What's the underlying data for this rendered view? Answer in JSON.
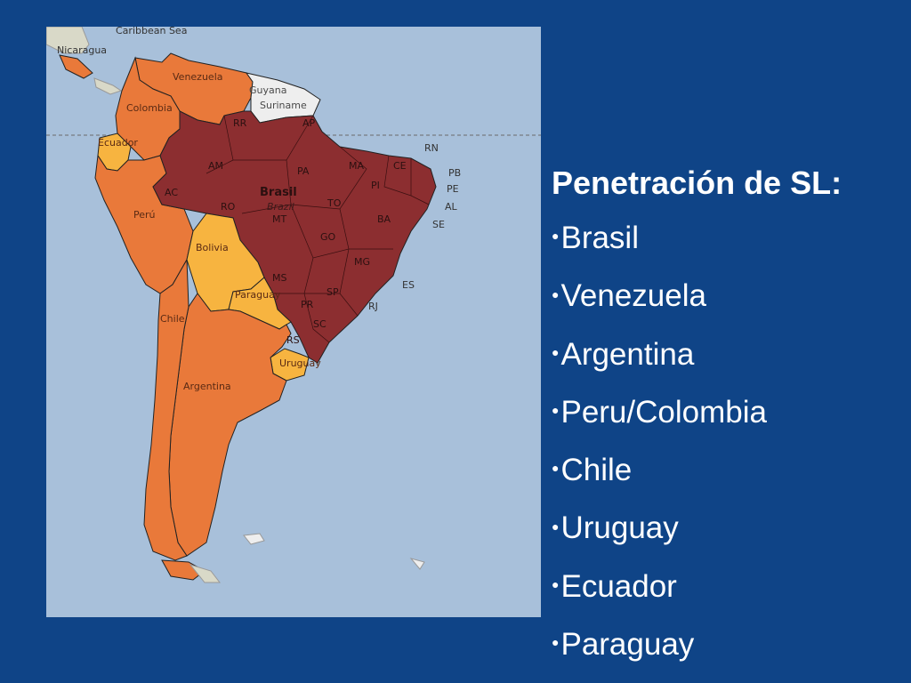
{
  "slide": {
    "heading": "Penetración de SL:",
    "items": [
      "Brasil",
      "Venezuela",
      "Argentina",
      "Peru/Colombia",
      "Chile",
      "Uruguay",
      "Ecuador",
      "Paraguay"
    ]
  },
  "map": {
    "colors": {
      "sea": "#a8c0da",
      "high": "#8c2e30",
      "medium": "#e9793a",
      "low": "#f7b440",
      "none": "#eeeeee",
      "land_other": "#d9d9c8"
    },
    "labels": {
      "caribbean_sea": "Caribbean Sea",
      "nicaragua": "Nicaragua",
      "venezuela": "Venezuela",
      "guyana": "Guyana",
      "suriname": "Suriname",
      "colombia": "Colombia",
      "ecuador": "Ecuador",
      "peru": "Perú",
      "bolivia": "Bolivia",
      "paraguay": "Paraguay",
      "chile": "Chile",
      "argentina": "Argentina",
      "uruguay": "Uruguay",
      "brasil": "Brasil",
      "brazil": "Brazil",
      "states": [
        "RR",
        "AP",
        "AM",
        "PA",
        "MA",
        "CE",
        "RN",
        "PB",
        "PE",
        "AL",
        "SE",
        "PI",
        "AC",
        "RO",
        "MT",
        "TO",
        "BA",
        "GO",
        "MG",
        "ES",
        "MS",
        "SP",
        "RJ",
        "PR",
        "SC",
        "RS"
      ]
    }
  }
}
